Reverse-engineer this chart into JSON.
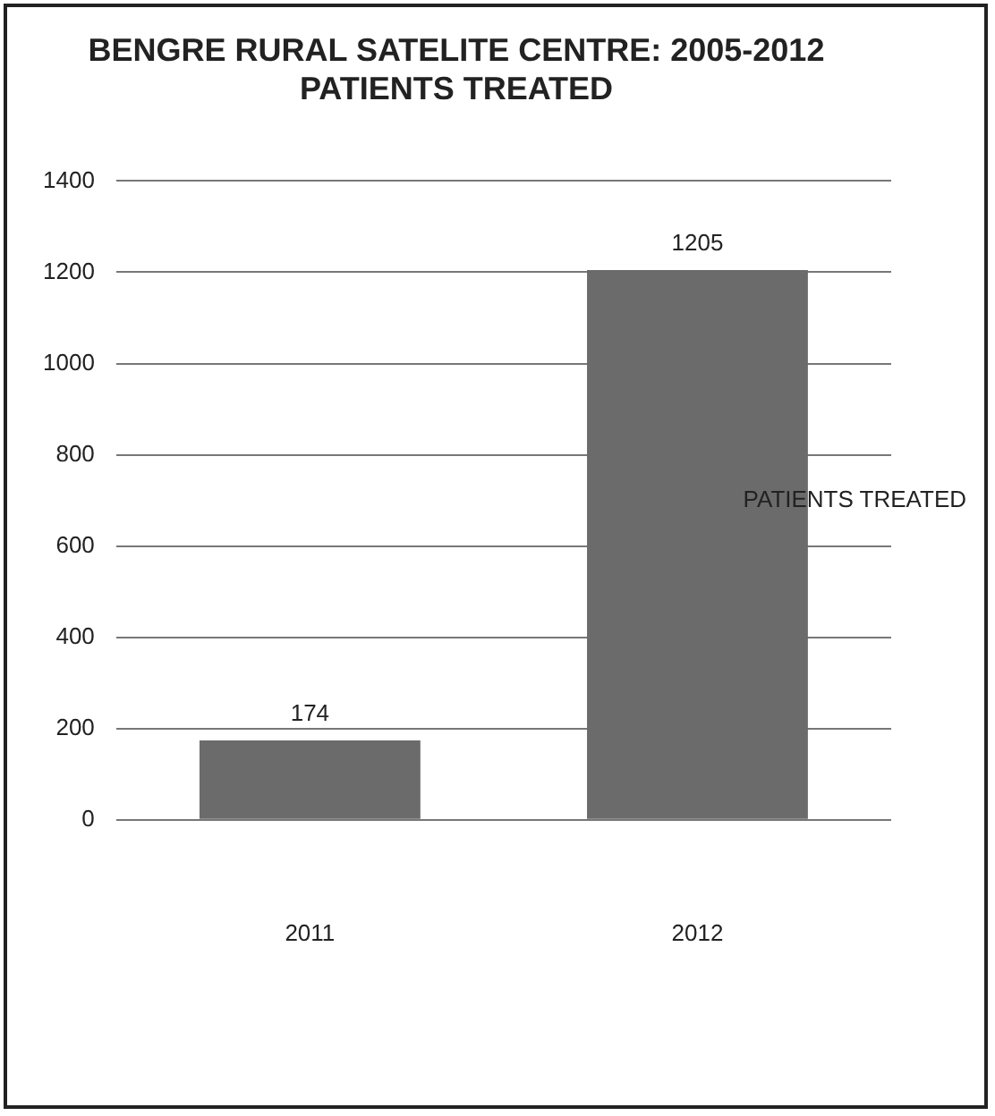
{
  "chart_data": {
    "type": "bar",
    "title": "BENGRE RURAL SATELITE CENTRE: 2005-2012\nPATIENTS TREATED",
    "categories": [
      "2011",
      "2012"
    ],
    "series": [
      {
        "name": "PATIENTS TREATED",
        "color": "#6b6b6b",
        "values": [
          174,
          1205
        ]
      }
    ],
    "ylim": [
      0,
      1400
    ],
    "yticks": [
      0,
      200,
      400,
      600,
      800,
      1000,
      1200,
      1400
    ],
    "grid": "y",
    "legend": "right",
    "data_labels": true
  }
}
